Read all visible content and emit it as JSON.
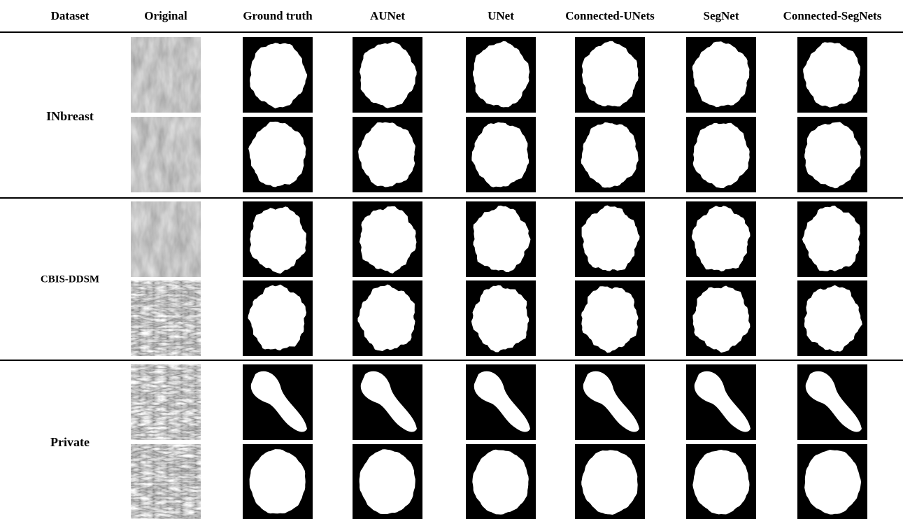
{
  "header": {
    "columns": [
      "Dataset",
      "Original",
      "Ground truth",
      "AUNet",
      "UNet",
      "Connected-UNets",
      "SegNet",
      "Connected-SegNets"
    ]
  },
  "groups": [
    {
      "label": "INbreast"
    },
    {
      "label": "CBIS-DDSM"
    },
    {
      "label": "Private"
    }
  ]
}
